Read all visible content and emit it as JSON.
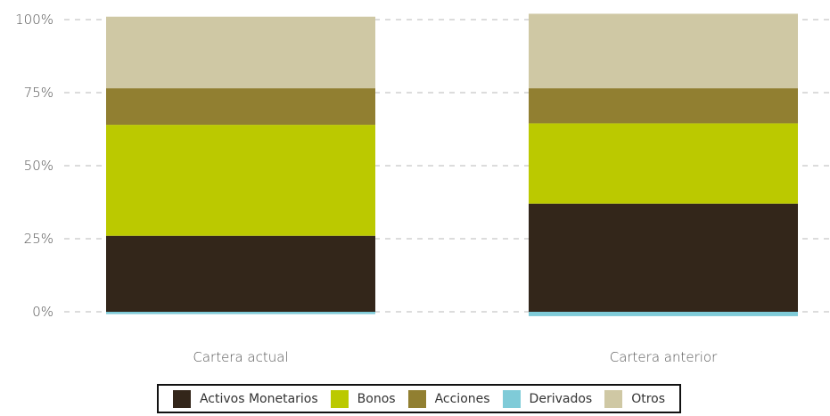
{
  "chart_data": {
    "type": "stacked-bar",
    "categories": [
      "Cartera actual",
      "Cartera anterior"
    ],
    "y_ticks": [
      "0%",
      "25%",
      "50%",
      "75%",
      "100%"
    ],
    "ylim": [
      -2,
      102
    ],
    "grid": true,
    "legend_position": "bottom",
    "series": [
      {
        "name": "Activos Monetarios",
        "color": "#33261a",
        "values": [
          26,
          37
        ]
      },
      {
        "name": "Bonos",
        "color": "#bbc900",
        "values": [
          38,
          27.5
        ]
      },
      {
        "name": "Acciones",
        "color": "#917f31",
        "values": [
          12.5,
          12
        ]
      },
      {
        "name": "Derivados",
        "color": "#7fcbd8",
        "values": [
          -0.8,
          -1.5
        ]
      },
      {
        "name": "Otros",
        "color": "#cfc8a4",
        "values": [
          24.5,
          25.5
        ]
      }
    ]
  },
  "legend": {
    "items": [
      {
        "label": "Activos Monetarios",
        "color": "#33261a"
      },
      {
        "label": "Bonos",
        "color": "#bbc900"
      },
      {
        "label": "Acciones",
        "color": "#917f31"
      },
      {
        "label": "Derivados",
        "color": "#7fcbd8"
      },
      {
        "label": "Otros",
        "color": "#cfc8a4"
      }
    ]
  }
}
